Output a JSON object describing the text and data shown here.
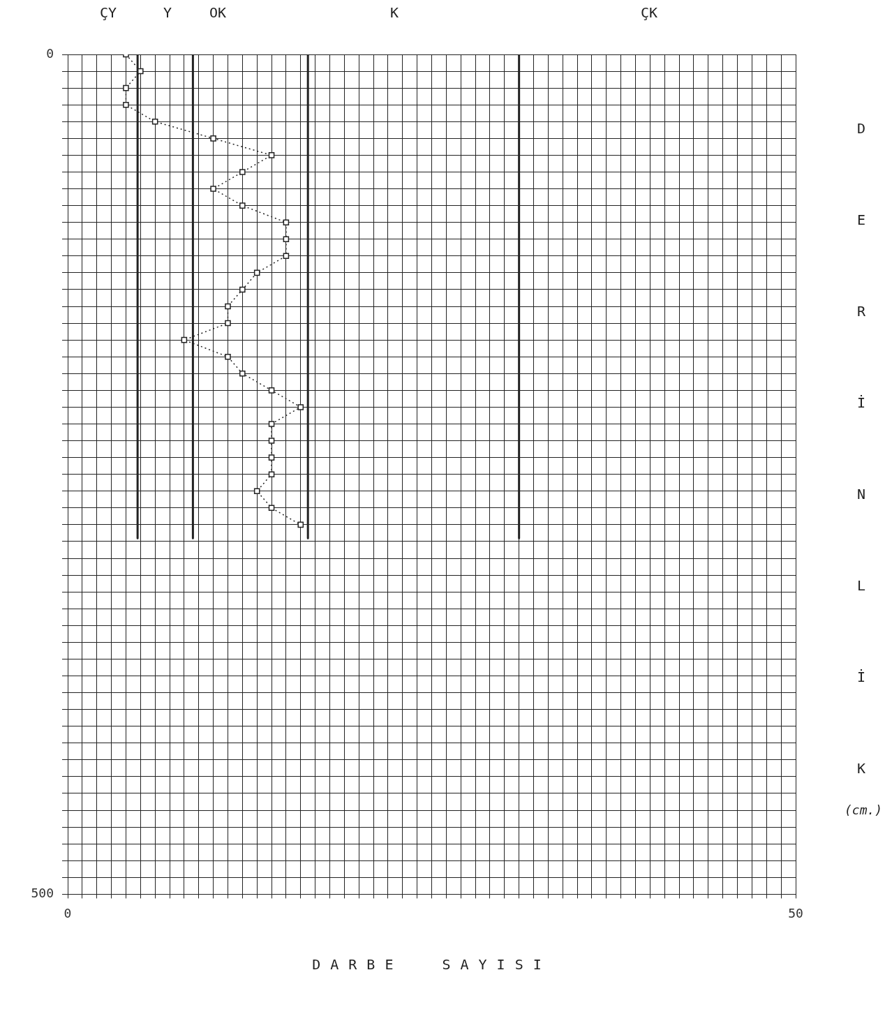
{
  "chart_data": {
    "type": "line",
    "xlabel": "DARBE SAYISI",
    "ylabel": "DERİNLİK (cm.)",
    "xlim": [
      0,
      50
    ],
    "ylim": [
      500,
      0
    ],
    "xticks": [
      0,
      {
        "value": 1,
        "label": null
      },
      {
        "value": 2,
        "label": null
      },
      {
        "value": 3,
        "label": null
      },
      {
        "value": 4,
        "label": null
      },
      {
        "value": 5,
        "label": null
      },
      {
        "value": 6,
        "label": null
      },
      {
        "value": 7,
        "label": null
      },
      {
        "value": 8,
        "label": null
      },
      {
        "value": 9,
        "label": null
      },
      {
        "value": 10,
        "label": null
      },
      {
        "value": 11,
        "label": null
      },
      {
        "value": 12,
        "label": null
      },
      {
        "value": 13,
        "label": null
      },
      {
        "value": 14,
        "label": null
      },
      {
        "value": 15,
        "label": null
      },
      {
        "value": 16,
        "label": null
      },
      {
        "value": 17,
        "label": null
      },
      {
        "value": 18,
        "label": null
      },
      {
        "value": 19,
        "label": null
      },
      {
        "value": 20,
        "label": null
      },
      {
        "value": 21,
        "label": null
      },
      {
        "value": 22,
        "label": null
      },
      {
        "value": 23,
        "label": null
      },
      {
        "value": 24,
        "label": null
      },
      {
        "value": 25,
        "label": null
      },
      {
        "value": 26,
        "label": null
      },
      {
        "value": 27,
        "label": null
      },
      {
        "value": 28,
        "label": null
      },
      {
        "value": 29,
        "label": null
      },
      {
        "value": 30,
        "label": null
      },
      {
        "value": 31,
        "label": null
      },
      {
        "value": 32,
        "label": null
      },
      {
        "value": 33,
        "label": null
      },
      {
        "value": 34,
        "label": null
      },
      {
        "value": 35,
        "label": null
      },
      {
        "value": 36,
        "label": null
      },
      {
        "value": 37,
        "label": null
      },
      {
        "value": 38,
        "label": null
      },
      {
        "value": 39,
        "label": null
      },
      {
        "value": 40,
        "label": null
      },
      {
        "value": 41,
        "label": null
      },
      {
        "value": 42,
        "label": null
      },
      {
        "value": 43,
        "label": null
      },
      {
        "value": 44,
        "label": null
      },
      {
        "value": 45,
        "label": null
      },
      {
        "value": 46,
        "label": null
      },
      {
        "value": 47,
        "label": null
      },
      {
        "value": 48,
        "label": null
      },
      {
        "value": 49,
        "label": null
      },
      50
    ],
    "yticks": [
      0,
      {
        "value": 10,
        "label": null
      },
      {
        "value": 20,
        "label": null
      },
      {
        "value": 30,
        "label": null
      },
      {
        "value": 40,
        "label": null
      },
      {
        "value": 50,
        "label": null
      },
      {
        "value": 60,
        "label": null
      },
      {
        "value": 70,
        "label": null
      },
      {
        "value": 80,
        "label": null
      },
      {
        "value": 90,
        "label": null
      },
      {
        "value": 100,
        "label": null
      },
      {
        "value": 110,
        "label": null
      },
      {
        "value": 120,
        "label": null
      },
      {
        "value": 130,
        "label": null
      },
      {
        "value": 140,
        "label": null
      },
      {
        "value": 150,
        "label": null
      },
      {
        "value": 160,
        "label": null
      },
      {
        "value": 170,
        "label": null
      },
      {
        "value": 180,
        "label": null
      },
      {
        "value": 190,
        "label": null
      },
      {
        "value": 200,
        "label": null
      },
      {
        "value": 210,
        "label": null
      },
      {
        "value": 220,
        "label": null
      },
      {
        "value": 230,
        "label": null
      },
      {
        "value": 240,
        "label": null
      },
      {
        "value": 250,
        "label": null
      },
      {
        "value": 260,
        "label": null
      },
      {
        "value": 270,
        "label": null
      },
      {
        "value": 280,
        "label": null
      },
      {
        "value": 290,
        "label": null
      },
      {
        "value": 300,
        "label": null
      },
      {
        "value": 310,
        "label": null
      },
      {
        "value": 320,
        "label": null
      },
      {
        "value": 330,
        "label": null
      },
      {
        "value": 340,
        "label": null
      },
      {
        "value": 350,
        "label": null
      },
      {
        "value": 360,
        "label": null
      },
      {
        "value": 370,
        "label": null
      },
      {
        "value": 380,
        "label": null
      },
      {
        "value": 390,
        "label": null
      },
      {
        "value": 400,
        "label": null
      },
      {
        "value": 410,
        "label": null
      },
      {
        "value": 420,
        "label": null
      },
      {
        "value": 430,
        "label": null
      },
      {
        "value": 440,
        "label": null
      },
      {
        "value": 450,
        "label": null
      },
      {
        "value": 460,
        "label": null
      },
      {
        "value": 470,
        "label": null
      },
      {
        "value": 480,
        "label": null
      },
      {
        "value": 490,
        "label": null
      },
      500
    ],
    "grid": true,
    "legend": false,
    "marker": "square",
    "line_style": "dotted",
    "series": [
      {
        "color": "#222222",
        "x": [
          4,
          5,
          4,
          4,
          6,
          10,
          14,
          12,
          10,
          12,
          15,
          15,
          15,
          13,
          12,
          11,
          11,
          8,
          11,
          12,
          14,
          16,
          14,
          14,
          14,
          14,
          13,
          14,
          16
        ],
        "values": [
          0,
          10,
          20,
          30,
          40,
          50,
          60,
          70,
          80,
          90,
          100,
          110,
          120,
          130,
          140,
          150,
          160,
          170,
          180,
          190,
          200,
          210,
          220,
          230,
          240,
          250,
          260,
          270,
          280
        ]
      },
      {
        "color": "#222222",
        "x": [
          4.8,
          4.8
        ],
        "values": [
          0,
          288
        ],
        "marker": "none",
        "line_style": "solid"
      },
      {
        "color": "#222222",
        "x": [
          8.6,
          8.6
        ],
        "values": [
          0,
          288
        ],
        "marker": "none",
        "line_style": "solid"
      },
      {
        "color": "#222222",
        "x": [
          16.5,
          16.5
        ],
        "values": [
          0,
          288
        ],
        "marker": "none",
        "line_style": "solid"
      },
      {
        "color": "#222222",
        "x": [
          31,
          31
        ],
        "values": [
          0,
          288
        ],
        "marker": "none",
        "line_style": "solid"
      }
    ],
    "annotations": [
      "ÇY",
      "Y",
      "OK",
      "K",
      "ÇK"
    ]
  }
}
